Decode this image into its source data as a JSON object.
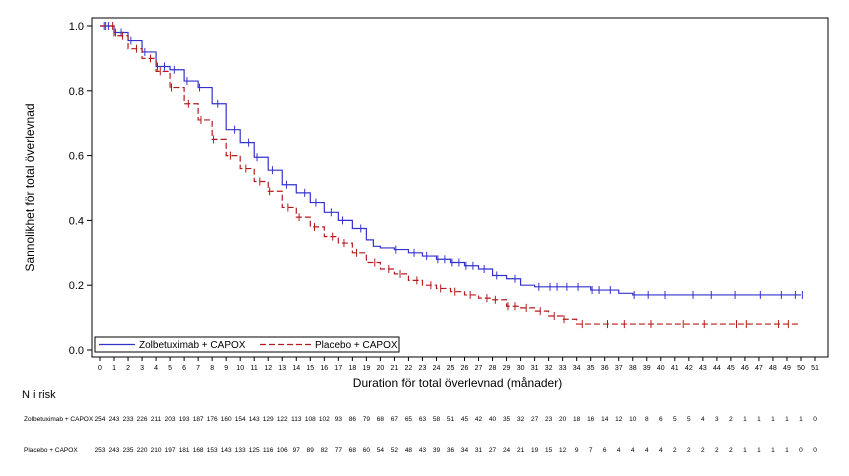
{
  "chart_data": {
    "type": "line",
    "subtype": "kaplan-meier",
    "xlabel": "Duration för total överlevnad (månader)",
    "ylabel": "Sannolikhet för total överlevnad",
    "xlim": [
      0,
      51
    ],
    "ylim": [
      0.0,
      1.0
    ],
    "xticks": [
      0,
      1,
      2,
      3,
      4,
      5,
      6,
      7,
      8,
      9,
      10,
      11,
      12,
      13,
      14,
      15,
      16,
      17,
      18,
      19,
      20,
      21,
      22,
      23,
      24,
      25,
      26,
      27,
      28,
      29,
      30,
      31,
      32,
      33,
      34,
      35,
      36,
      37,
      38,
      39,
      40,
      41,
      42,
      43,
      44,
      45,
      46,
      47,
      48,
      49,
      50,
      51
    ],
    "yticks": [
      "0.0",
      "0.2",
      "0.4",
      "0.6",
      "0.8",
      "1.0"
    ],
    "grid": false,
    "legend_position": "bottom-left",
    "series": [
      {
        "name": "Zolbetuximab + CAPOX",
        "color": "#3333cc",
        "dash": "solid",
        "x": [
          0,
          1,
          2,
          3,
          4,
          5,
          6,
          7,
          8,
          9,
          10,
          11,
          12,
          13,
          14,
          15,
          16,
          17,
          18,
          19,
          19.5,
          20,
          21,
          22,
          23,
          24,
          25,
          26,
          27,
          28,
          29,
          30,
          31,
          32,
          33,
          34,
          35,
          36,
          37,
          38,
          40,
          42,
          44,
          46,
          48,
          50
        ],
        "y": [
          1.0,
          0.98,
          0.955,
          0.92,
          0.875,
          0.865,
          0.83,
          0.81,
          0.76,
          0.68,
          0.64,
          0.595,
          0.555,
          0.51,
          0.485,
          0.455,
          0.425,
          0.4,
          0.375,
          0.34,
          0.32,
          0.315,
          0.31,
          0.3,
          0.29,
          0.28,
          0.27,
          0.26,
          0.25,
          0.23,
          0.22,
          0.2,
          0.195,
          0.195,
          0.195,
          0.195,
          0.185,
          0.185,
          0.175,
          0.17,
          0.17,
          0.17,
          0.17,
          0.17,
          0.17,
          0.17
        ],
        "censor_x": [
          0.3,
          0.6,
          1.1,
          1.5,
          2.2,
          3.2,
          4.1,
          4.6,
          5.3,
          6.2,
          7.1,
          8.4,
          9.6,
          10.6,
          11.2,
          12.3,
          13.3,
          14.6,
          15.4,
          16.5,
          17.3,
          18.6,
          21.1,
          22.4,
          23.3,
          24.1,
          24.6,
          25.1,
          25.6,
          26.1,
          26.6,
          27.4,
          28.3,
          29.6,
          31.3,
          32.1,
          32.6,
          33.3,
          34.1,
          35.1,
          35.6,
          36.4,
          38.1,
          39.1,
          40.3,
          42.3,
          43.6,
          45.3,
          47.1,
          48.6,
          49.6,
          50.1
        ]
      },
      {
        "name": "Placebo + CAPOX",
        "color": "#b31b1b",
        "dash": "dashed",
        "x": [
          0,
          1,
          2,
          3,
          4,
          5,
          6,
          7,
          8,
          9,
          10,
          11,
          12,
          13,
          14,
          15,
          16,
          17,
          18,
          19,
          20,
          21,
          22,
          23,
          24,
          25,
          26,
          27,
          28,
          29,
          30,
          31,
          32,
          33,
          34,
          35,
          36,
          38,
          40,
          42,
          44,
          46,
          48,
          50
        ],
        "y": [
          1.0,
          0.97,
          0.93,
          0.9,
          0.86,
          0.81,
          0.76,
          0.71,
          0.65,
          0.6,
          0.56,
          0.52,
          0.49,
          0.44,
          0.41,
          0.38,
          0.35,
          0.33,
          0.3,
          0.27,
          0.25,
          0.235,
          0.215,
          0.2,
          0.19,
          0.18,
          0.17,
          0.16,
          0.155,
          0.135,
          0.13,
          0.12,
          0.105,
          0.095,
          0.08,
          0.08,
          0.08,
          0.08,
          0.08,
          0.08,
          0.08,
          0.08,
          0.08,
          0.08
        ],
        "censor_x": [
          0.4,
          0.9,
          1.6,
          2.6,
          3.6,
          4.3,
          5.1,
          6.3,
          7.2,
          8.1,
          9.3,
          10.4,
          11.4,
          12.1,
          13.4,
          14.2,
          15.3,
          16.6,
          17.4,
          18.3,
          19.6,
          20.6,
          21.4,
          22.6,
          23.6,
          24.3,
          25.3,
          26.4,
          27.6,
          28.2,
          29.1,
          29.6,
          30.4,
          31.4,
          32.4,
          33.1,
          34.4,
          36.2,
          37.4,
          39.3,
          41.6,
          43.1,
          45.4,
          46.1,
          48.4,
          49.1
        ]
      }
    ],
    "risk_table": {
      "title": "N i risk",
      "rows": [
        {
          "label": "Zolbetuximab + CAPOX",
          "values": [
            "254",
            "243",
            "233",
            "226",
            "211",
            "203",
            "193",
            "187",
            "176",
            "160",
            "154",
            "143",
            "129",
            "122",
            "113",
            "108",
            "102",
            "93",
            "86",
            "79",
            "68",
            "67",
            "65",
            "63",
            "58",
            "51",
            "45",
            "42",
            "40",
            "35",
            "32",
            "27",
            "23",
            "20",
            "18",
            "16",
            "14",
            "12",
            "10",
            "8",
            "6",
            "5",
            "5",
            "4",
            "3",
            "2",
            "1",
            "1",
            "1",
            "1",
            "1",
            "0"
          ]
        },
        {
          "label": "Placebo + CAPOX",
          "values": [
            "253",
            "243",
            "235",
            "220",
            "210",
            "197",
            "181",
            "168",
            "153",
            "143",
            "133",
            "125",
            "116",
            "106",
            "97",
            "89",
            "82",
            "77",
            "68",
            "60",
            "54",
            "52",
            "48",
            "43",
            "39",
            "36",
            "34",
            "31",
            "27",
            "24",
            "21",
            "19",
            "15",
            "12",
            "9",
            "7",
            "6",
            "4",
            "4",
            "4",
            "4",
            "2",
            "2",
            "2",
            "2",
            "2",
            "1",
            "1",
            "1",
            "1",
            "0",
            "0"
          ]
        }
      ]
    }
  }
}
